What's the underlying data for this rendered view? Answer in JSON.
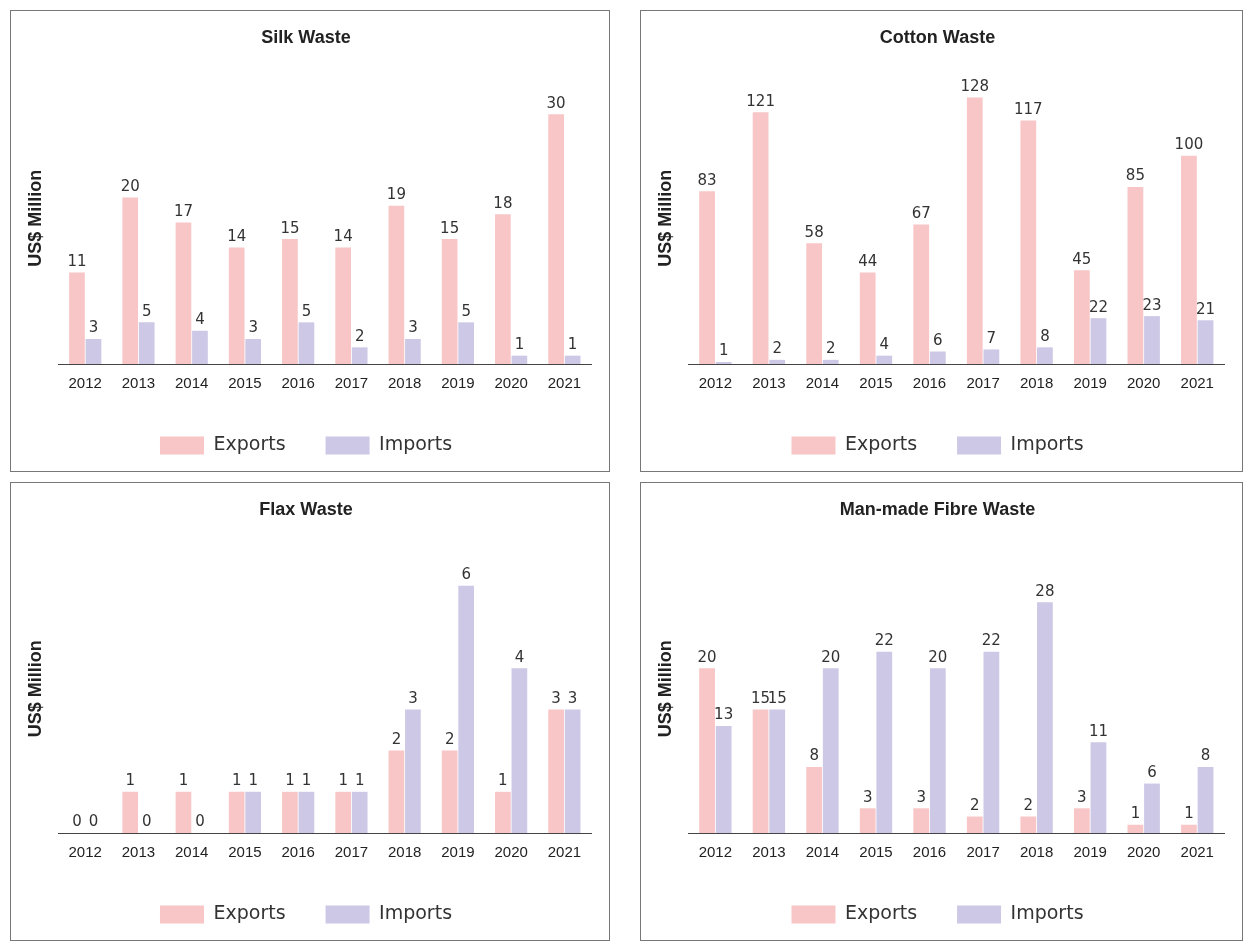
{
  "chart_data": [
    {
      "type": "bar",
      "title": "Silk Waste",
      "ylabel": "US$ Million",
      "categories": [
        "2012",
        "2013",
        "2014",
        "2015",
        "2016",
        "2017",
        "2018",
        "2019",
        "2020",
        "2021"
      ],
      "series": [
        {
          "name": "Exports",
          "color": "#f8c6c6",
          "values": [
            11,
            20,
            17,
            14,
            15,
            14,
            19,
            15,
            18,
            30
          ]
        },
        {
          "name": "Imports",
          "color": "#ccc8e6",
          "values": [
            3,
            5,
            4,
            3,
            5,
            2,
            3,
            5,
            1,
            1
          ]
        }
      ],
      "data_labels": true,
      "legend": "bottom",
      "grid": false
    },
    {
      "type": "bar",
      "title": "Cotton Waste",
      "ylabel": "US$ Million",
      "categories": [
        "2012",
        "2013",
        "2014",
        "2015",
        "2016",
        "2017",
        "2018",
        "2019",
        "2020",
        "2021"
      ],
      "series": [
        {
          "name": "Exports",
          "color": "#f8c6c6",
          "values": [
            83,
            121,
            58,
            44,
            67,
            128,
            117,
            45,
            85,
            100
          ]
        },
        {
          "name": "Imports",
          "color": "#ccc8e6",
          "values": [
            1,
            2,
            2,
            4,
            6,
            7,
            8,
            22,
            23,
            21
          ]
        }
      ],
      "data_labels": true,
      "legend": "bottom",
      "grid": false
    },
    {
      "type": "bar",
      "title": "Flax Waste",
      "ylabel": "US$ Million",
      "categories": [
        "2012",
        "2013",
        "2014",
        "2015",
        "2016",
        "2017",
        "2018",
        "2019",
        "2020",
        "2021"
      ],
      "series": [
        {
          "name": "Exports",
          "color": "#f8c6c6",
          "values": [
            0,
            1,
            1,
            1,
            1,
            1,
            2,
            2,
            1,
            3
          ]
        },
        {
          "name": "Imports",
          "color": "#ccc8e6",
          "values": [
            0,
            0,
            0,
            1,
            1,
            1,
            3,
            6,
            4,
            3
          ]
        }
      ],
      "data_labels": true,
      "legend": "bottom",
      "grid": false
    },
    {
      "type": "bar",
      "title": "Man-made Fibre Waste",
      "ylabel": "US$ Million",
      "categories": [
        "2012",
        "2013",
        "2014",
        "2015",
        "2016",
        "2017",
        "2018",
        "2019",
        "2020",
        "2021"
      ],
      "series": [
        {
          "name": "Exports",
          "color": "#f8c6c6",
          "values": [
            20,
            15,
            8,
            3,
            3,
            2,
            2,
            3,
            1,
            1
          ]
        },
        {
          "name": "Imports",
          "color": "#ccc8e6",
          "values": [
            13,
            15,
            20,
            22,
            20,
            22,
            28,
            11,
            6,
            8
          ]
        }
      ],
      "data_labels": true,
      "legend": "bottom",
      "grid": false
    }
  ]
}
